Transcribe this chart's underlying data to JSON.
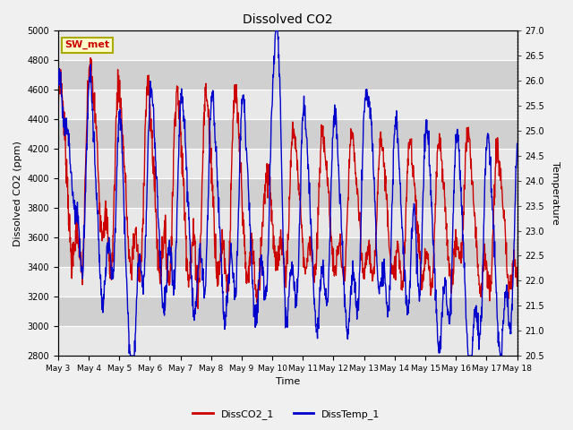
{
  "title": "Dissolved CO2",
  "xlabel": "Time",
  "ylabel_left": "Dissolved CO2 (ppm)",
  "ylabel_right": "Temperature",
  "annotation": "SW_met",
  "ylim_left": [
    2800,
    5000
  ],
  "ylim_right": [
    20.5,
    27.0
  ],
  "yticks_left": [
    2800,
    3000,
    3200,
    3400,
    3600,
    3800,
    4000,
    4200,
    4400,
    4600,
    4800,
    5000
  ],
  "yticks_right": [
    20.5,
    21.0,
    21.5,
    22.0,
    22.5,
    23.0,
    23.5,
    24.0,
    24.5,
    25.0,
    25.5,
    26.0,
    26.5,
    27.0
  ],
  "xtick_labels": [
    "May 3",
    "May 4",
    "May 5",
    "May 6",
    "May 7",
    "May 8",
    "May 9",
    "May 10",
    "May 11",
    "May 12",
    "May 13",
    "May 14",
    "May 15",
    "May 16",
    "May 17",
    "May 18"
  ],
  "color_co2": "#cc0000",
  "color_temp": "#0000cc",
  "legend_co2": "DissCO2_1",
  "legend_temp": "DissTemp_1",
  "plot_bg_color": "#dcdcdc",
  "grid_color": "#f0f0f0",
  "annotation_bg": "#ffffcc",
  "annotation_border": "#aaaa00",
  "annotation_text_color": "#cc0000",
  "fig_bg": "#f0f0f0"
}
